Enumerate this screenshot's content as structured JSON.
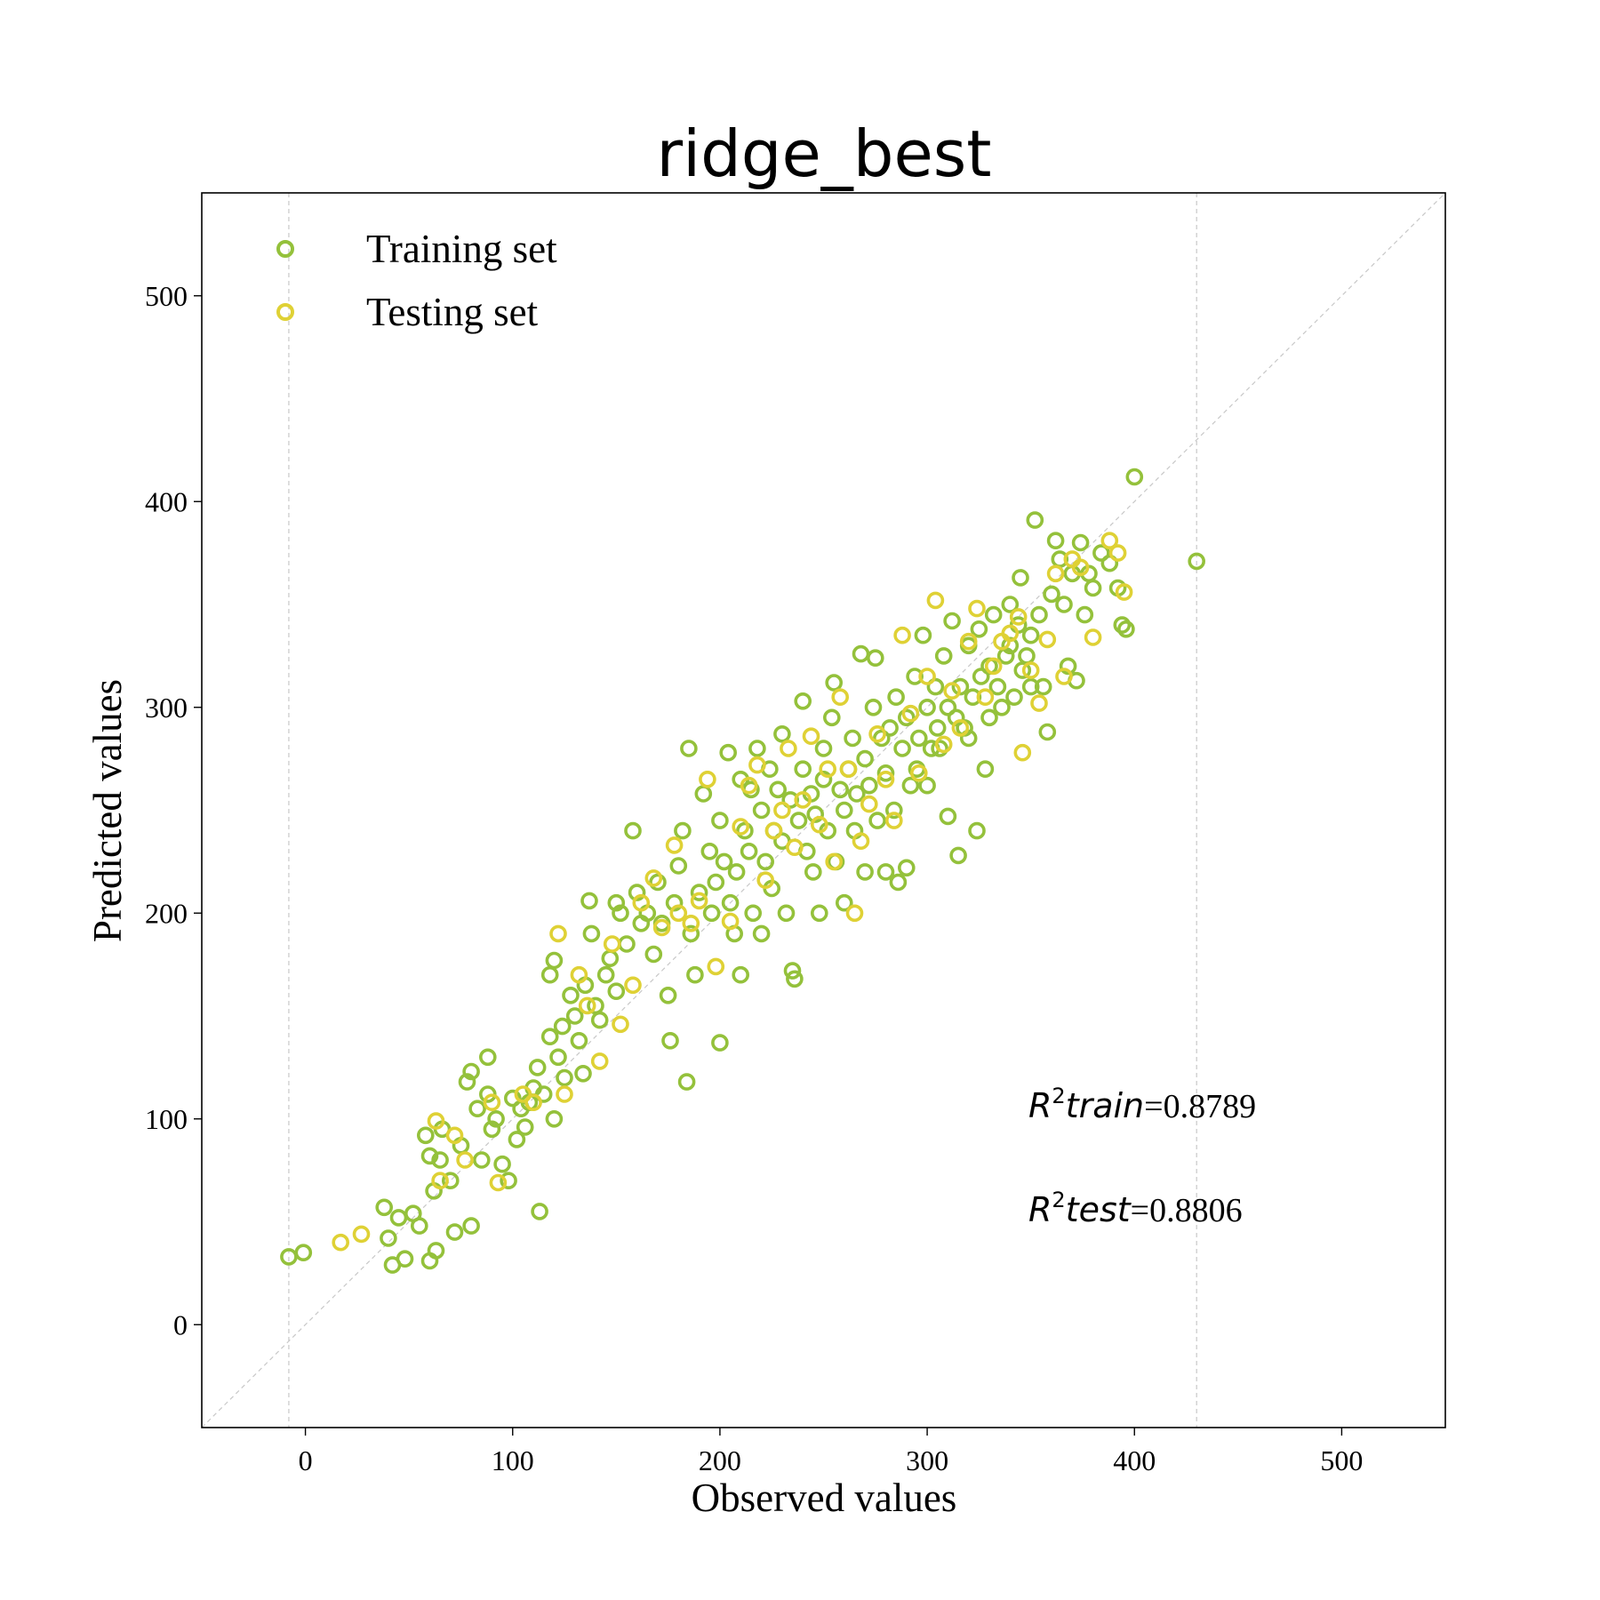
{
  "chart_data": {
    "type": "scatter",
    "title": "ridge_best",
    "xlabel": "Observed values",
    "ylabel": "Predicted values",
    "xlim": [
      -50,
      550
    ],
    "ylim": [
      -50,
      550
    ],
    "xticks": [
      0,
      100,
      200,
      300,
      400,
      500
    ],
    "yticks": [
      0,
      100,
      200,
      300,
      400,
      500
    ],
    "x_tick_labels": [
      "0",
      "100",
      "200",
      "300",
      "400",
      "500"
    ],
    "y_tick_labels": [
      "0",
      "100",
      "200",
      "300",
      "400",
      "500"
    ],
    "reference_line": "y = x (dashed, light gray)",
    "vertical_reference_lines": [
      -8,
      430
    ],
    "legend_placement": "top-left",
    "grid": false,
    "series": [
      {
        "name": "Training set",
        "color": "#94c13b",
        "marker": "hollow circle",
        "points": [
          [
            -8,
            33
          ],
          [
            -1,
            35
          ],
          [
            38,
            57
          ],
          [
            40,
            42
          ],
          [
            42,
            29
          ],
          [
            48,
            32
          ],
          [
            45,
            52
          ],
          [
            52,
            54
          ],
          [
            55,
            48
          ],
          [
            58,
            92
          ],
          [
            60,
            82
          ],
          [
            62,
            65
          ],
          [
            60,
            31
          ],
          [
            63,
            36
          ],
          [
            65,
            80
          ],
          [
            66,
            95
          ],
          [
            70,
            70
          ],
          [
            72,
            45
          ],
          [
            75,
            87
          ],
          [
            78,
            118
          ],
          [
            80,
            123
          ],
          [
            80,
            48
          ],
          [
            83,
            105
          ],
          [
            85,
            80
          ],
          [
            88,
            112
          ],
          [
            88,
            130
          ],
          [
            90,
            95
          ],
          [
            92,
            100
          ],
          [
            95,
            78
          ],
          [
            98,
            70
          ],
          [
            100,
            110
          ],
          [
            102,
            90
          ],
          [
            104,
            105
          ],
          [
            106,
            96
          ],
          [
            108,
            108
          ],
          [
            110,
            115
          ],
          [
            112,
            125
          ],
          [
            113,
            55
          ],
          [
            115,
            112
          ],
          [
            118,
            140
          ],
          [
            118,
            170
          ],
          [
            120,
            100
          ],
          [
            120,
            177
          ],
          [
            122,
            130
          ],
          [
            124,
            145
          ],
          [
            125,
            120
          ],
          [
            128,
            160
          ],
          [
            130,
            150
          ],
          [
            132,
            138
          ],
          [
            134,
            122
          ],
          [
            135,
            165
          ],
          [
            137,
            206
          ],
          [
            138,
            190
          ],
          [
            140,
            155
          ],
          [
            142,
            148
          ],
          [
            145,
            170
          ],
          [
            147,
            178
          ],
          [
            150,
            162
          ],
          [
            150,
            205
          ],
          [
            152,
            200
          ],
          [
            155,
            185
          ],
          [
            158,
            240
          ],
          [
            160,
            210
          ],
          [
            162,
            195
          ],
          [
            165,
            200
          ],
          [
            168,
            180
          ],
          [
            170,
            215
          ],
          [
            172,
            195
          ],
          [
            175,
            160
          ],
          [
            176,
            138
          ],
          [
            178,
            205
          ],
          [
            180,
            223
          ],
          [
            182,
            240
          ],
          [
            184,
            118
          ],
          [
            185,
            280
          ],
          [
            186,
            190
          ],
          [
            188,
            170
          ],
          [
            190,
            210
          ],
          [
            192,
            258
          ],
          [
            195,
            230
          ],
          [
            196,
            200
          ],
          [
            198,
            215
          ],
          [
            200,
            245
          ],
          [
            200,
            137
          ],
          [
            202,
            225
          ],
          [
            204,
            278
          ],
          [
            205,
            205
          ],
          [
            207,
            190
          ],
          [
            208,
            220
          ],
          [
            210,
            265
          ],
          [
            210,
            170
          ],
          [
            212,
            240
          ],
          [
            214,
            230
          ],
          [
            215,
            260
          ],
          [
            216,
            200
          ],
          [
            218,
            280
          ],
          [
            220,
            250
          ],
          [
            220,
            190
          ],
          [
            222,
            225
          ],
          [
            224,
            270
          ],
          [
            225,
            212
          ],
          [
            226,
            240
          ],
          [
            228,
            260
          ],
          [
            230,
            235
          ],
          [
            230,
            287
          ],
          [
            232,
            200
          ],
          [
            234,
            255
          ],
          [
            235,
            172
          ],
          [
            236,
            168
          ],
          [
            238,
            245
          ],
          [
            240,
            270
          ],
          [
            240,
            303
          ],
          [
            242,
            230
          ],
          [
            244,
            258
          ],
          [
            245,
            220
          ],
          [
            246,
            248
          ],
          [
            248,
            200
          ],
          [
            250,
            265
          ],
          [
            250,
            280
          ],
          [
            252,
            240
          ],
          [
            254,
            295
          ],
          [
            255,
            312
          ],
          [
            256,
            225
          ],
          [
            258,
            260
          ],
          [
            260,
            250
          ],
          [
            260,
            205
          ],
          [
            262,
            270
          ],
          [
            264,
            285
          ],
          [
            265,
            240
          ],
          [
            266,
            258
          ],
          [
            268,
            326
          ],
          [
            270,
            275
          ],
          [
            270,
            220
          ],
          [
            272,
            262
          ],
          [
            274,
            300
          ],
          [
            275,
            324
          ],
          [
            276,
            245
          ],
          [
            278,
            285
          ],
          [
            280,
            268
          ],
          [
            280,
            220
          ],
          [
            282,
            290
          ],
          [
            284,
            250
          ],
          [
            285,
            305
          ],
          [
            286,
            215
          ],
          [
            288,
            280
          ],
          [
            290,
            295
          ],
          [
            290,
            222
          ],
          [
            292,
            262
          ],
          [
            294,
            315
          ],
          [
            295,
            270
          ],
          [
            296,
            285
          ],
          [
            298,
            335
          ],
          [
            300,
            300
          ],
          [
            300,
            262
          ],
          [
            302,
            280
          ],
          [
            304,
            310
          ],
          [
            305,
            290
          ],
          [
            306,
            280
          ],
          [
            308,
            325
          ],
          [
            310,
            300
          ],
          [
            310,
            247
          ],
          [
            312,
            342
          ],
          [
            314,
            295
          ],
          [
            315,
            228
          ],
          [
            316,
            310
          ],
          [
            318,
            290
          ],
          [
            320,
            330
          ],
          [
            320,
            285
          ],
          [
            322,
            305
          ],
          [
            324,
            240
          ],
          [
            325,
            338
          ],
          [
            326,
            315
          ],
          [
            328,
            270
          ],
          [
            330,
            320
          ],
          [
            330,
            295
          ],
          [
            332,
            345
          ],
          [
            334,
            310
          ],
          [
            336,
            300
          ],
          [
            338,
            325
          ],
          [
            340,
            330
          ],
          [
            340,
            350
          ],
          [
            342,
            305
          ],
          [
            344,
            340
          ],
          [
            345,
            363
          ],
          [
            346,
            318
          ],
          [
            348,
            325
          ],
          [
            350,
            335
          ],
          [
            350,
            310
          ],
          [
            352,
            391
          ],
          [
            354,
            345
          ],
          [
            356,
            310
          ],
          [
            358,
            288
          ],
          [
            360,
            355
          ],
          [
            362,
            381
          ],
          [
            364,
            372
          ],
          [
            366,
            350
          ],
          [
            368,
            320
          ],
          [
            370,
            365
          ],
          [
            372,
            313
          ],
          [
            374,
            380
          ],
          [
            376,
            345
          ],
          [
            378,
            365
          ],
          [
            380,
            358
          ],
          [
            384,
            375
          ],
          [
            388,
            370
          ],
          [
            392,
            358
          ],
          [
            394,
            340
          ],
          [
            396,
            338
          ],
          [
            400,
            412
          ],
          [
            430,
            371
          ]
        ]
      },
      {
        "name": "Testing set",
        "color": "#dfd135",
        "marker": "hollow circle",
        "points": [
          [
            17,
            40
          ],
          [
            27,
            44
          ],
          [
            63,
            99
          ],
          [
            65,
            70
          ],
          [
            72,
            92
          ],
          [
            77,
            80
          ],
          [
            90,
            108
          ],
          [
            93,
            69
          ],
          [
            105,
            112
          ],
          [
            110,
            108
          ],
          [
            122,
            190
          ],
          [
            125,
            112
          ],
          [
            132,
            170
          ],
          [
            136,
            155
          ],
          [
            142,
            128
          ],
          [
            148,
            185
          ],
          [
            152,
            146
          ],
          [
            158,
            165
          ],
          [
            162,
            205
          ],
          [
            168,
            217
          ],
          [
            172,
            193
          ],
          [
            178,
            233
          ],
          [
            180,
            200
          ],
          [
            186,
            195
          ],
          [
            190,
            206
          ],
          [
            194,
            265
          ],
          [
            198,
            174
          ],
          [
            205,
            196
          ],
          [
            210,
            242
          ],
          [
            214,
            262
          ],
          [
            218,
            272
          ],
          [
            222,
            216
          ],
          [
            226,
            240
          ],
          [
            230,
            250
          ],
          [
            233,
            280
          ],
          [
            236,
            232
          ],
          [
            240,
            255
          ],
          [
            244,
            286
          ],
          [
            248,
            243
          ],
          [
            252,
            270
          ],
          [
            255,
            225
          ],
          [
            258,
            305
          ],
          [
            262,
            270
          ],
          [
            265,
            200
          ],
          [
            268,
            235
          ],
          [
            272,
            253
          ],
          [
            276,
            287
          ],
          [
            280,
            265
          ],
          [
            284,
            245
          ],
          [
            288,
            335
          ],
          [
            292,
            297
          ],
          [
            296,
            268
          ],
          [
            300,
            315
          ],
          [
            304,
            352
          ],
          [
            308,
            282
          ],
          [
            312,
            308
          ],
          [
            316,
            290
          ],
          [
            320,
            332
          ],
          [
            324,
            348
          ],
          [
            328,
            305
          ],
          [
            332,
            320
          ],
          [
            336,
            332
          ],
          [
            340,
            336
          ],
          [
            344,
            344
          ],
          [
            346,
            278
          ],
          [
            350,
            318
          ],
          [
            354,
            302
          ],
          [
            358,
            333
          ],
          [
            362,
            365
          ],
          [
            366,
            315
          ],
          [
            370,
            372
          ],
          [
            374,
            368
          ],
          [
            380,
            334
          ],
          [
            388,
            381
          ],
          [
            392,
            375
          ],
          [
            395,
            356
          ]
        ]
      }
    ],
    "annotations": [
      {
        "label": "R²train",
        "value": "0.8789"
      },
      {
        "label": "R²test",
        "value": "0.8806"
      }
    ]
  },
  "annotation_text": {
    "train_var": "R",
    "train_sup": "2",
    "train_sub": "train",
    "train_eq": "=0.8789",
    "test_var": "R",
    "test_sup": "2",
    "test_sub": "test",
    "test_eq": "=0.8806"
  }
}
